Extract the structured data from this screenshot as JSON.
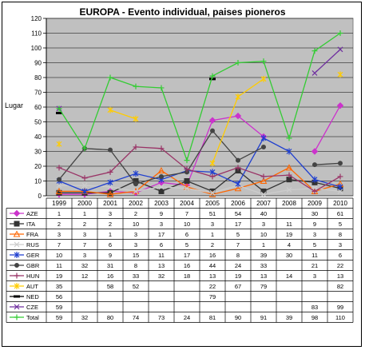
{
  "chart_data": {
    "type": "line",
    "title": "EUROPA - Evento individual, paises pioneros",
    "ylabel": "Lugar",
    "xlabel": "",
    "ylim": [
      0,
      120
    ],
    "yticks": [
      0,
      10,
      20,
      30,
      40,
      50,
      60,
      70,
      80,
      90,
      100,
      110,
      120
    ],
    "grid": true,
    "legend": "table-below",
    "categories": [
      "1999",
      "2000",
      "2001",
      "2002",
      "2003",
      "2004",
      "2005",
      "2006",
      "2007",
      "2008",
      "2009",
      "2010"
    ],
    "series": [
      {
        "name": "AZE",
        "color": "#cc33cc",
        "marker": "diamond",
        "values": [
          1,
          1,
          3,
          2,
          9,
          7,
          51,
          54,
          40,
          null,
          30,
          61
        ],
        "labels": [
          "1",
          "1",
          "3",
          "2",
          "9",
          "7",
          "51",
          "54",
          "40",
          "",
          "30",
          "61"
        ]
      },
      {
        "name": "ITA",
        "color": "#333333",
        "marker": "square",
        "values": [
          2,
          2,
          2,
          10,
          3,
          10,
          3,
          17,
          3,
          11,
          9,
          5
        ],
        "labels": [
          "2",
          "2",
          "2",
          "10",
          "3",
          "10",
          "3",
          "17",
          "3",
          "11",
          "9",
          "5"
        ]
      },
      {
        "name": "FRA",
        "color": "#ff6600",
        "marker": "triangle",
        "values": [
          3,
          3,
          1,
          3,
          17,
          6,
          1,
          5,
          10,
          19,
          3,
          8
        ],
        "labels": [
          "3",
          "3",
          "1",
          "3",
          "17",
          "6",
          "1",
          "5",
          "10",
          "19",
          "3",
          "8"
        ]
      },
      {
        "name": "RUS",
        "color": "#cccccc",
        "marker": "x",
        "values": [
          7,
          7,
          6,
          3,
          6,
          5,
          2,
          7,
          1,
          4,
          5,
          3
        ],
        "labels": [
          "7",
          "7",
          "6",
          "3",
          "6",
          "5",
          "2",
          "7",
          "1",
          "4",
          "5",
          "3"
        ]
      },
      {
        "name": "GER",
        "color": "#1f3fcf",
        "marker": "star",
        "values": [
          10,
          3,
          9,
          15,
          11,
          17,
          16,
          8,
          39,
          30,
          11,
          6
        ],
        "labels": [
          "10",
          "3",
          "9",
          "15",
          "11",
          "17",
          "16",
          "8",
          "39",
          "30",
          "11",
          "6"
        ]
      },
      {
        "name": "GBR",
        "color": "#444444",
        "marker": "circle",
        "values": [
          11,
          32,
          31,
          8,
          13,
          16,
          44,
          24,
          33,
          null,
          21,
          22
        ],
        "labels": [
          "11",
          "32",
          "31",
          "8",
          "13",
          "16",
          "44",
          "24",
          "33",
          "",
          "21",
          "22"
        ]
      },
      {
        "name": "HUN",
        "color": "#993366",
        "marker": "plus",
        "values": [
          19,
          12,
          16,
          33,
          32,
          18,
          13,
          19,
          13,
          14,
          3,
          13
        ],
        "labels": [
          "19",
          "12",
          "16",
          "33",
          "32",
          "18",
          "13",
          "19",
          "13",
          "14",
          "3",
          "13"
        ]
      },
      {
        "name": "AUT",
        "color": "#ffcc00",
        "marker": "star",
        "values": [
          35,
          null,
          58,
          52,
          null,
          null,
          22,
          67,
          79,
          null,
          null,
          82
        ],
        "labels": [
          "35",
          "",
          "58",
          "52",
          "",
          "",
          "22",
          "67",
          "79",
          "",
          "",
          "82"
        ]
      },
      {
        "name": "NED",
        "color": "#000000",
        "marker": "bar",
        "values": [
          56,
          null,
          null,
          null,
          null,
          null,
          79,
          null,
          null,
          null,
          null,
          null
        ],
        "labels": [
          "56",
          "",
          "",
          "",
          "",
          "",
          "79",
          "",
          "",
          "",
          "",
          ""
        ]
      },
      {
        "name": "CZE",
        "color": "#7030a0",
        "marker": "x",
        "values": [
          59,
          null,
          null,
          null,
          null,
          null,
          null,
          null,
          null,
          null,
          83,
          99
        ],
        "labels": [
          "59",
          "",
          "",
          "",
          "",
          "",
          "",
          "",
          "",
          "",
          "83",
          "99"
        ]
      },
      {
        "name": "Total",
        "color": "#33cc33",
        "marker": "plus",
        "values": [
          59,
          32,
          80,
          74,
          73,
          24,
          81,
          90,
          91,
          39,
          98,
          110
        ],
        "labels": [
          "59",
          "32",
          "80",
          "74",
          "73",
          "24",
          "81",
          "90",
          "91",
          "39",
          "98",
          "110"
        ]
      }
    ]
  }
}
